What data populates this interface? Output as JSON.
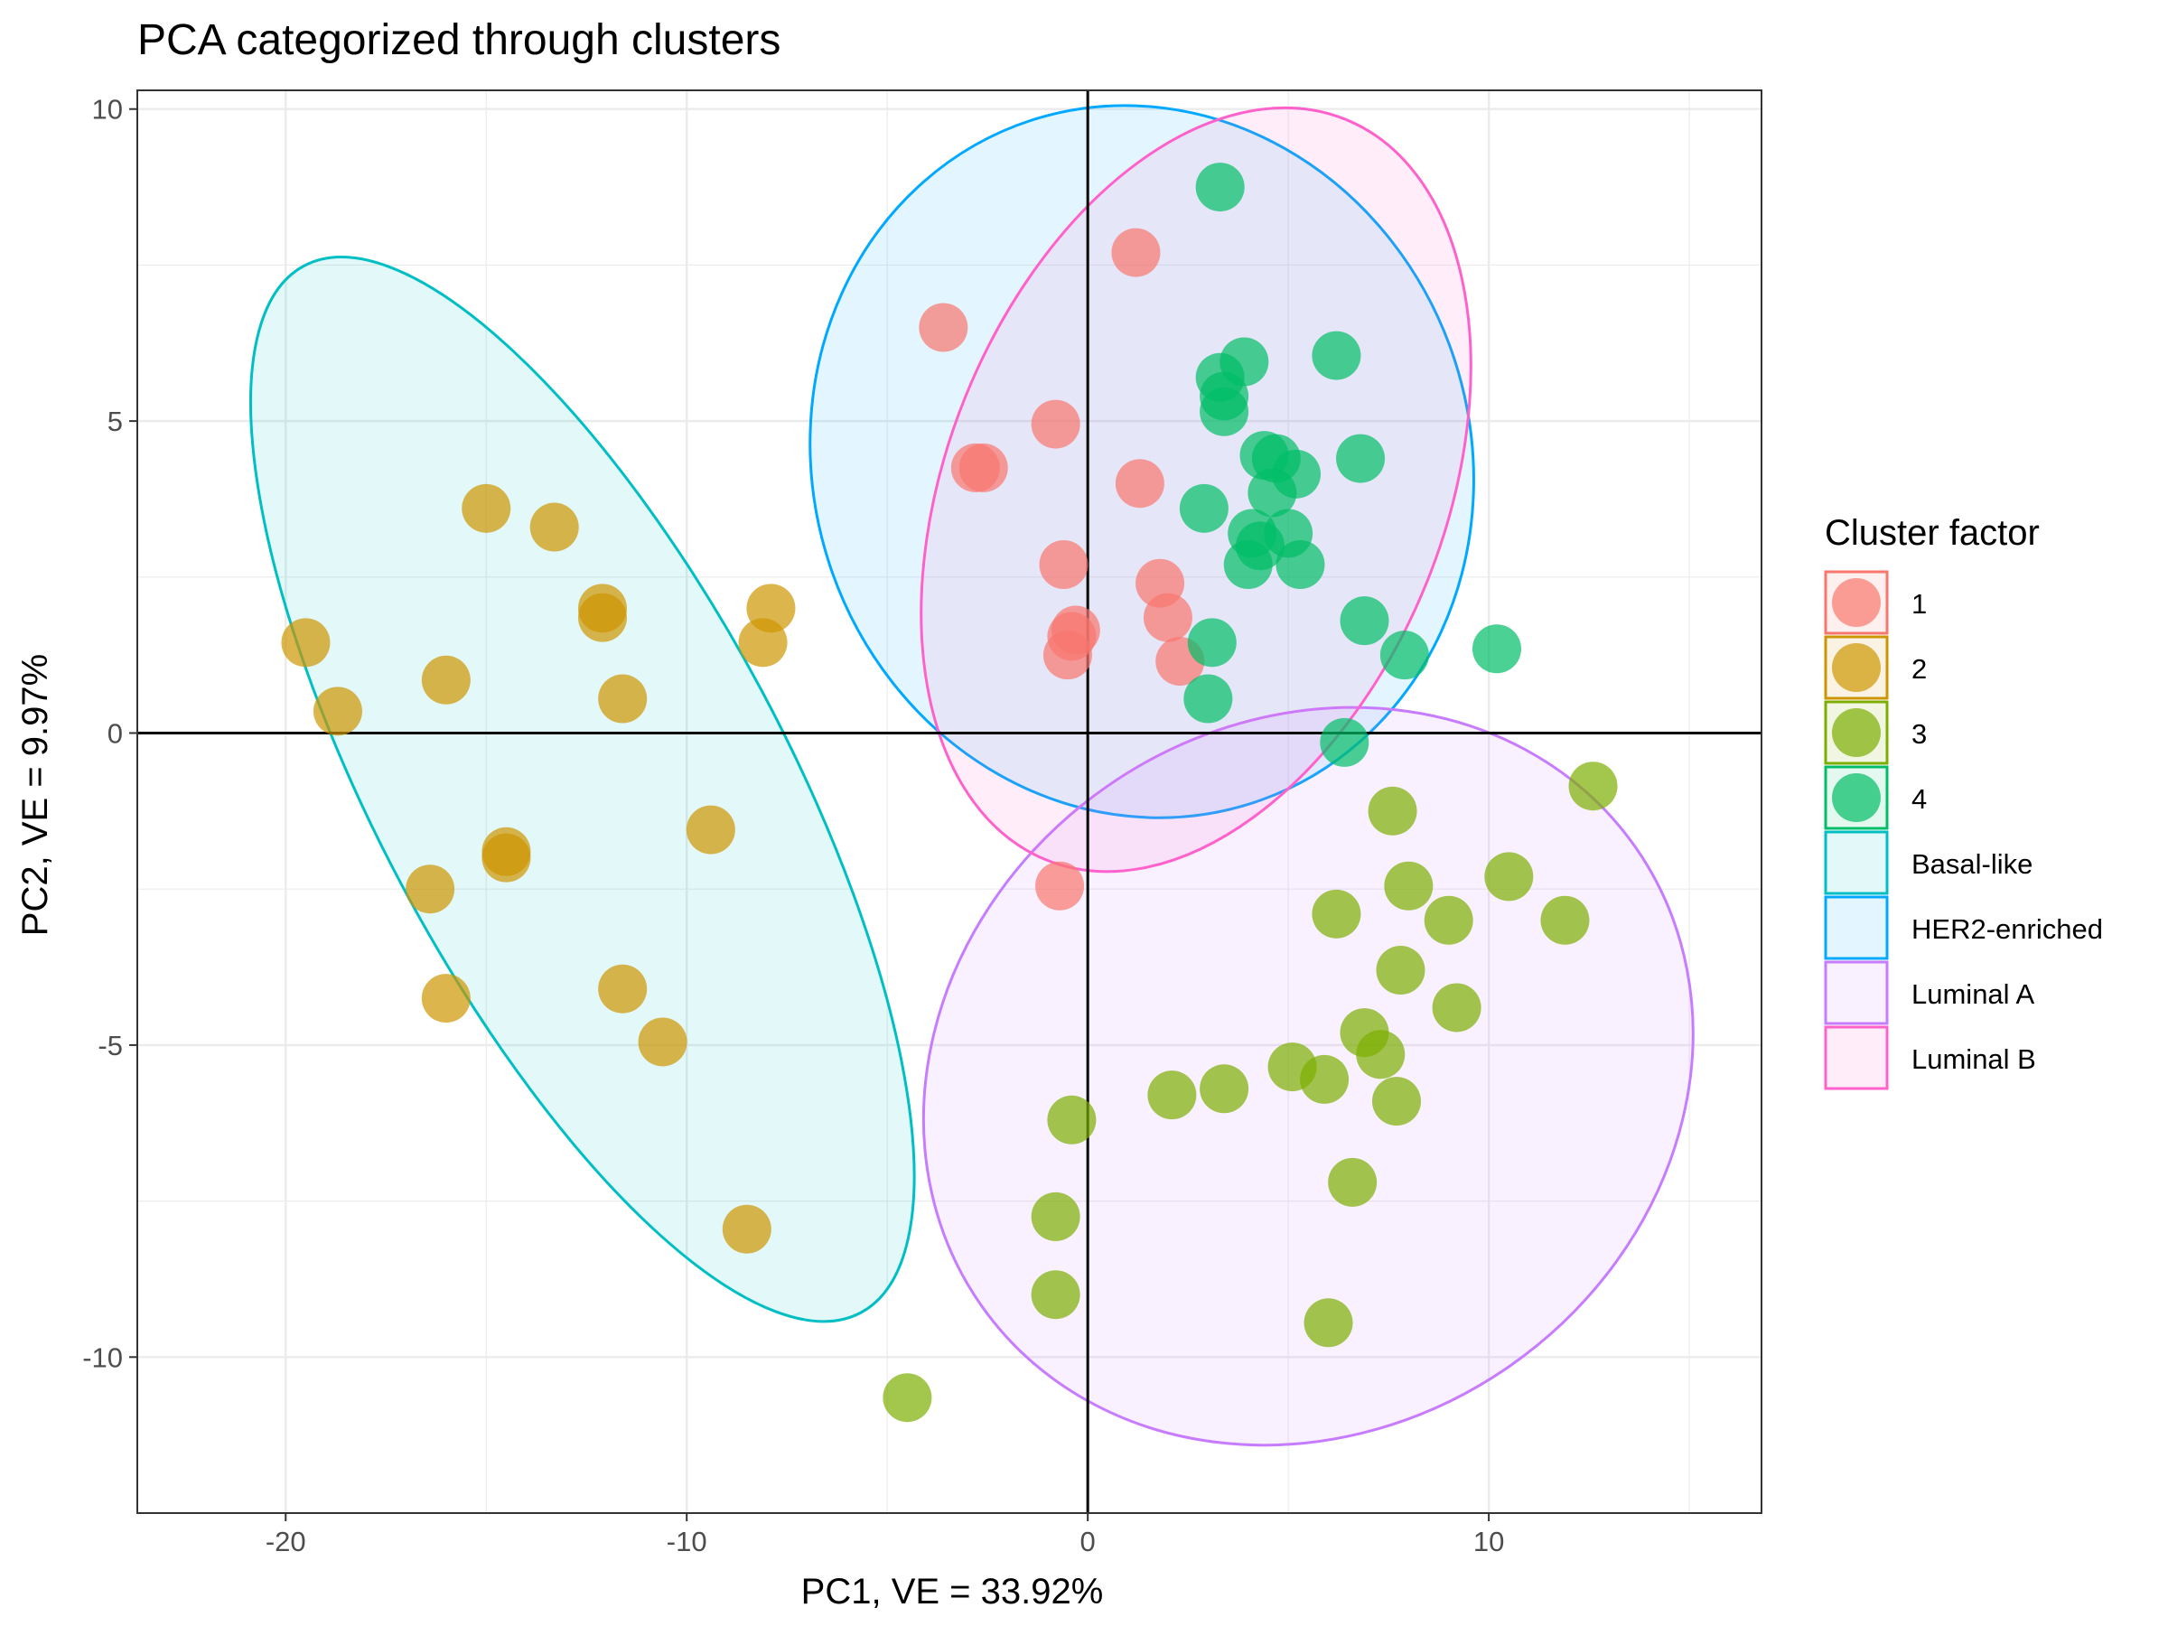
{
  "chart_data": {
    "type": "scatter",
    "title": "PCA categorized through clusters",
    "xlabel": "PC1, VE = 33.92%",
    "ylabel": "PC2, VE = 9.97%",
    "xlim": [
      -23.7,
      16.8
    ],
    "ylim": [
      -12.5,
      10.3
    ],
    "x_ticks": [
      -20,
      -10,
      0,
      10
    ],
    "x_tick_labels": [
      "-20",
      "-10",
      "0",
      "10"
    ],
    "y_ticks": [
      -10,
      -5,
      0,
      5,
      10
    ],
    "y_tick_labels": [
      "-10",
      "-5",
      "0",
      "5",
      "10"
    ],
    "grid": true,
    "reference_lines": {
      "x": 0,
      "y": 0
    },
    "legend": {
      "title": "Cluster factor",
      "position": "right",
      "entries": [
        "1",
        "2",
        "3",
        "4",
        "Basal-like",
        "HER2-enriched",
        "Luminal A",
        "Luminal B"
      ]
    },
    "colors": {
      "1": "#F8766D",
      "2": "#CD9600",
      "3": "#7CAE00",
      "4": "#00BE67",
      "Basal-like": "#00BFC4",
      "HER2-enriched": "#00A9FF",
      "Luminal A": "#C77CFF",
      "Luminal B": "#FF61CC"
    },
    "series": [
      {
        "name": "1",
        "points": [
          [
            1.2,
            7.7
          ],
          [
            -3.6,
            6.5
          ],
          [
            -0.8,
            4.95
          ],
          [
            -2.8,
            4.25
          ],
          [
            -2.6,
            4.25
          ],
          [
            1.3,
            4.0
          ],
          [
            -0.6,
            2.7
          ],
          [
            1.8,
            2.4
          ],
          [
            2.0,
            1.85
          ],
          [
            -0.3,
            1.65
          ],
          [
            -0.4,
            1.55
          ],
          [
            -0.5,
            1.25
          ],
          [
            2.3,
            1.15
          ],
          [
            -0.7,
            -2.45
          ]
        ]
      },
      {
        "name": "2",
        "points": [
          [
            -15.0,
            3.6
          ],
          [
            -13.3,
            3.3
          ],
          [
            -12.1,
            2.0
          ],
          [
            -12.1,
            1.85
          ],
          [
            -7.9,
            2.0
          ],
          [
            -8.1,
            1.45
          ],
          [
            -19.5,
            1.45
          ],
          [
            -16.0,
            0.85
          ],
          [
            -11.6,
            0.55
          ],
          [
            -18.7,
            0.35
          ],
          [
            -9.4,
            -1.55
          ],
          [
            -14.5,
            -1.9
          ],
          [
            -14.5,
            -2.0
          ],
          [
            -16.4,
            -2.5
          ],
          [
            -16.0,
            -4.25
          ],
          [
            -11.6,
            -4.1
          ],
          [
            -10.6,
            -4.95
          ],
          [
            -8.5,
            -7.95
          ]
        ]
      },
      {
        "name": "3",
        "points": [
          [
            12.6,
            -0.85
          ],
          [
            7.6,
            -1.25
          ],
          [
            10.5,
            -2.3
          ],
          [
            8.0,
            -2.45
          ],
          [
            6.2,
            -2.9
          ],
          [
            9.0,
            -3.0
          ],
          [
            11.9,
            -3.0
          ],
          [
            7.8,
            -3.8
          ],
          [
            9.2,
            -4.4
          ],
          [
            6.9,
            -4.8
          ],
          [
            7.3,
            -5.15
          ],
          [
            5.1,
            -5.35
          ],
          [
            5.9,
            -5.55
          ],
          [
            2.1,
            -5.8
          ],
          [
            3.4,
            -5.7
          ],
          [
            7.7,
            -5.9
          ],
          [
            -0.4,
            -6.2
          ],
          [
            6.6,
            -7.2
          ],
          [
            -0.8,
            -7.75
          ],
          [
            -0.8,
            -9.0
          ],
          [
            6.0,
            -9.45
          ],
          [
            -4.5,
            -10.65
          ]
        ]
      },
      {
        "name": "4",
        "points": [
          [
            3.3,
            8.75
          ],
          [
            6.2,
            6.05
          ],
          [
            3.9,
            5.95
          ],
          [
            3.3,
            5.7
          ],
          [
            3.4,
            5.4
          ],
          [
            3.4,
            5.15
          ],
          [
            4.4,
            4.45
          ],
          [
            4.7,
            4.4
          ],
          [
            6.8,
            4.4
          ],
          [
            5.2,
            4.15
          ],
          [
            4.6,
            3.85
          ],
          [
            2.9,
            3.6
          ],
          [
            4.1,
            3.2
          ],
          [
            5.0,
            3.2
          ],
          [
            4.3,
            3.0
          ],
          [
            4.0,
            2.7
          ],
          [
            5.3,
            2.7
          ],
          [
            6.9,
            1.8
          ],
          [
            3.1,
            1.45
          ],
          [
            7.9,
            1.25
          ],
          [
            10.2,
            1.35
          ],
          [
            3.0,
            0.55
          ],
          [
            6.4,
            -0.15
          ]
        ]
      }
    ],
    "ellipses": [
      {
        "name": "Basal-like",
        "center": [
          -12.6,
          -0.9
        ],
        "semi_axes_data": [
          5.1,
          9.5
        ],
        "rotation_deg": -28
      },
      {
        "name": "HER2-enriched",
        "center": [
          1.35,
          4.35
        ],
        "semi_axes_data": [
          8.2,
          5.75
        ],
        "rotation_deg": -18
      },
      {
        "name": "Luminal A",
        "center": [
          5.5,
          -5.5
        ],
        "semi_axes_data": [
          8.8,
          6.4
        ],
        "rotation_deg": 55
      },
      {
        "name": "Luminal B",
        "center": [
          2.7,
          3.9
        ],
        "semi_axes_data": [
          6.2,
          6.4
        ],
        "rotation_deg": 22
      }
    ]
  }
}
